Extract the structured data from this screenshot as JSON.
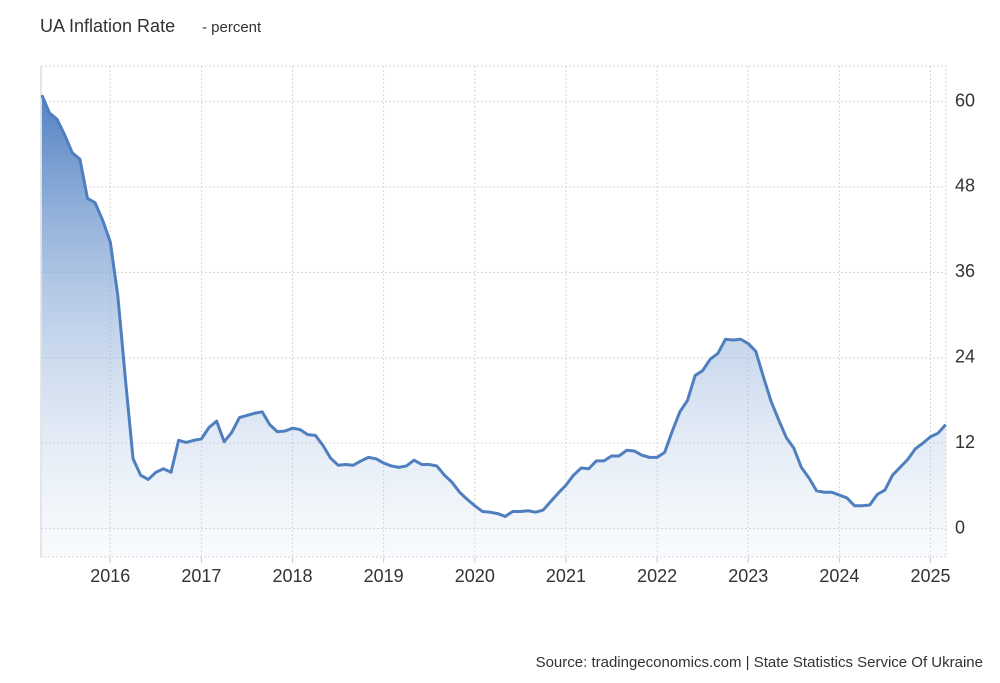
{
  "chart_data": {
    "type": "line",
    "title": "UA Inflation Rate",
    "subtitle": "- percent",
    "source": "Source: tradingeconomics.com | State Statistics Service Of Ukraine",
    "x": [
      2015.25,
      2015.333,
      2015.417,
      2015.5,
      2015.583,
      2015.667,
      2015.75,
      2015.833,
      2015.917,
      2016,
      2016.083,
      2016.167,
      2016.25,
      2016.333,
      2016.417,
      2016.5,
      2016.583,
      2016.667,
      2016.75,
      2016.833,
      2016.917,
      2017,
      2017.083,
      2017.167,
      2017.25,
      2017.333,
      2017.417,
      2017.5,
      2017.583,
      2017.667,
      2017.75,
      2017.833,
      2017.917,
      2018,
      2018.083,
      2018.167,
      2018.25,
      2018.333,
      2018.417,
      2018.5,
      2018.583,
      2018.667,
      2018.75,
      2018.833,
      2018.917,
      2019,
      2019.083,
      2019.167,
      2019.25,
      2019.333,
      2019.417,
      2019.5,
      2019.583,
      2019.667,
      2019.75,
      2019.833,
      2019.917,
      2020,
      2020.083,
      2020.167,
      2020.25,
      2020.333,
      2020.417,
      2020.5,
      2020.583,
      2020.667,
      2020.75,
      2020.833,
      2020.917,
      2021,
      2021.083,
      2021.167,
      2021.25,
      2021.333,
      2021.417,
      2021.5,
      2021.583,
      2021.667,
      2021.75,
      2021.833,
      2021.917,
      2022,
      2022.083,
      2022.167,
      2022.25,
      2022.333,
      2022.417,
      2022.5,
      2022.583,
      2022.667,
      2022.75,
      2022.833,
      2022.917,
      2023,
      2023.083,
      2023.167,
      2023.25,
      2023.333,
      2023.417,
      2023.5,
      2023.583,
      2023.667,
      2023.75,
      2023.833,
      2023.917,
      2024,
      2024.083,
      2024.167,
      2024.25,
      2024.333,
      2024.417,
      2024.5,
      2024.583,
      2024.667,
      2024.75,
      2024.833,
      2024.917,
      2025,
      2025.083,
      2025.167
    ],
    "series": [
      {
        "name": "Inflation Rate",
        "color": "#4f7fbf",
        "values": [
          60.9,
          58.4,
          57.5,
          55.3,
          52.8,
          51.9,
          46.4,
          45.8,
          43.3,
          40.3,
          32.7,
          20.9,
          9.8,
          7.5,
          6.9,
          7.9,
          8.4,
          7.9,
          12.4,
          12.1,
          12.4,
          12.6,
          14.2,
          15.1,
          12.2,
          13.5,
          15.6,
          15.9,
          16.2,
          16.4,
          14.6,
          13.6,
          13.7,
          14.1,
          13.9,
          13.2,
          13.1,
          11.7,
          9.9,
          8.9,
          9.0,
          8.9,
          9.5,
          10.0,
          9.8,
          9.2,
          8.8,
          8.6,
          8.8,
          9.6,
          9.0,
          9.0,
          8.8,
          7.5,
          6.5,
          5.1,
          4.1,
          3.2,
          2.4,
          2.3,
          2.1,
          1.7,
          2.4,
          2.4,
          2.5,
          2.3,
          2.6,
          3.8,
          5.0,
          6.1,
          7.5,
          8.5,
          8.4,
          9.5,
          9.5,
          10.2,
          10.2,
          11.0,
          10.9,
          10.3,
          10.0,
          10.0,
          10.7,
          13.7,
          16.4,
          18.0,
          21.5,
          22.2,
          23.8,
          24.6,
          26.6,
          26.5,
          26.6,
          26.0,
          24.9,
          21.3,
          17.9,
          15.3,
          12.8,
          11.3,
          8.6,
          7.1,
          5.3,
          5.1,
          5.1,
          4.7,
          4.3,
          3.2,
          3.2,
          3.3,
          4.8,
          5.4,
          7.5,
          8.6,
          9.7,
          11.2,
          12.0,
          12.9,
          13.4,
          14.6
        ]
      }
    ],
    "xlim": [
      2015.24,
      2025.17
    ],
    "xticks": [
      2016,
      2017,
      2018,
      2019,
      2020,
      2021,
      2022,
      2023,
      2024,
      2025
    ],
    "ylim": [
      -4,
      65
    ],
    "yticks": [
      0,
      12,
      24,
      36,
      48,
      60
    ],
    "grid": true
  }
}
